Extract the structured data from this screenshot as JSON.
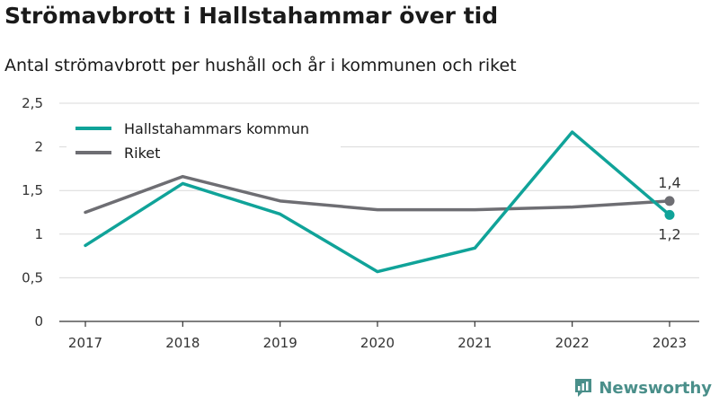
{
  "title": "Strömavbrott i Hallstahammar över tid",
  "subtitle": "Antal strömavbrott per hushåll och år i kommunen och riket",
  "brand": "Newsworthy",
  "colors": {
    "kommun": "#10a399",
    "riket": "#6e6e73",
    "grid": "#d9d9d9",
    "axis": "#333333",
    "brand": "#4a8f8a"
  },
  "chart_data": {
    "type": "line",
    "x": [
      "2017",
      "2018",
      "2019",
      "2020",
      "2021",
      "2022",
      "2023"
    ],
    "ylim": [
      0,
      2.5
    ],
    "yticks": [
      0,
      0.5,
      1,
      1.5,
      2,
      2.5
    ],
    "ytick_labels": [
      "0",
      "0,5",
      "1",
      "1,5",
      "2",
      "2,5"
    ],
    "grid": "horizontal",
    "legend_position": "top-left",
    "series": [
      {
        "name": "Hallstahammars kommun",
        "color_key": "kommun",
        "values": [
          0.87,
          1.58,
          1.23,
          0.57,
          0.84,
          2.17,
          1.22
        ],
        "end_label": "1,2"
      },
      {
        "name": "Riket",
        "color_key": "riket",
        "values": [
          1.25,
          1.66,
          1.38,
          1.28,
          1.28,
          1.31,
          1.38
        ],
        "end_label": "1,4"
      }
    ]
  }
}
